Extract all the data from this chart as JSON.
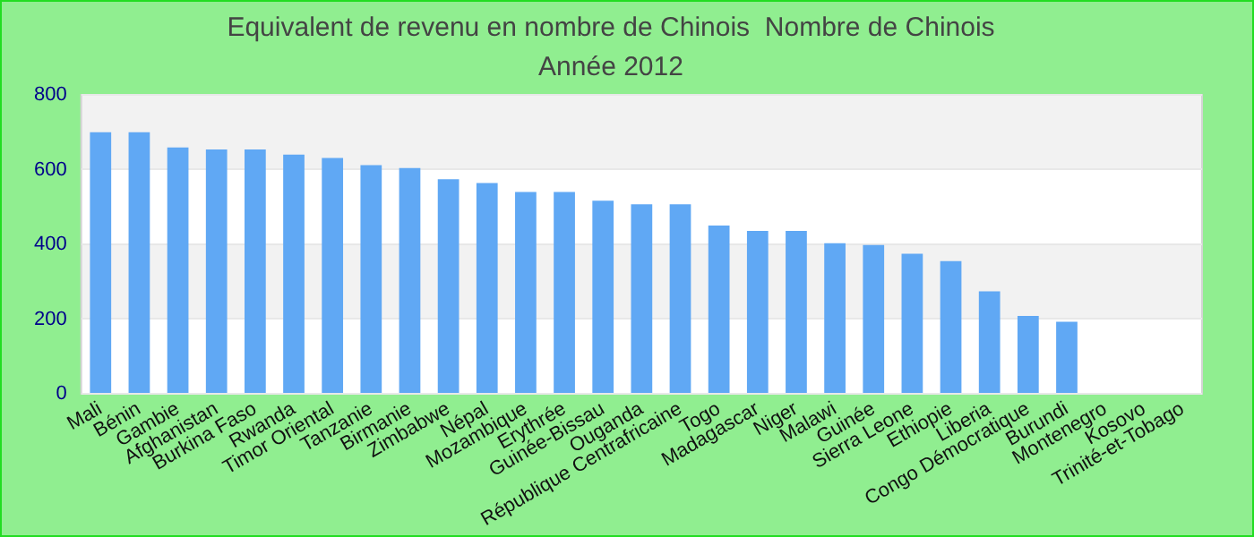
{
  "chart_data": {
    "type": "bar",
    "title": "Equivalent de revenu en nombre de Chinois  Nombre de Chinois",
    "subtitle": "Année 2012",
    "categories": [
      "Mali",
      "Bénin",
      "Gambie",
      "Afghanistan",
      "Burkina Faso",
      "Rwanda",
      "Timor Oriental",
      "Tanzanie",
      "Birmanie",
      "Zimbabwe",
      "Népal",
      "Mozambique",
      "Erythrée",
      "Guinée-Bissau",
      "Ouganda",
      "République Centrafricaine",
      "Togo",
      "Madagascar",
      "Niger",
      "Malawi",
      "Guinée",
      "Sierra Leone",
      "Ethiopie",
      "Liberia",
      "Congo Démocratique",
      "Burundi",
      "Montenegro",
      "Kosovo",
      "Trinité-et-Tobago"
    ],
    "values": [
      700,
      700,
      659,
      654,
      654,
      640,
      631,
      612,
      604,
      574,
      564,
      540,
      540,
      517,
      507,
      507,
      450,
      436,
      436,
      403,
      398,
      375,
      355,
      274,
      208,
      193,
      null,
      null,
      null
    ],
    "color": "#60a8f4",
    "ylim": [
      0,
      800
    ],
    "yticks": [
      0,
      200,
      400,
      600,
      800
    ],
    "grid": "y"
  }
}
